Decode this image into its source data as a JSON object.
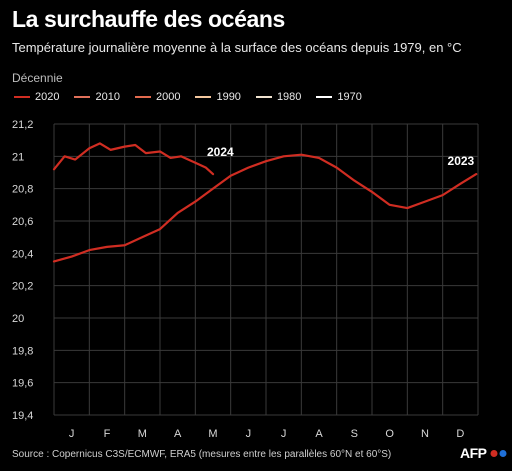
{
  "header": {
    "title": "La surchauffe des océans",
    "subtitle": "Température journalière moyenne à la surface des océans depuis 1979, en °C"
  },
  "legend": {
    "title": "Décennie",
    "items": [
      {
        "label": "2020",
        "color": "#d02d22"
      },
      {
        "label": "2010",
        "color": "#e0705a"
      },
      {
        "label": "2000",
        "color": "#e26a4e"
      },
      {
        "label": "1990",
        "color": "#f4c79e"
      },
      {
        "label": "1980",
        "color": "#f0e3d0"
      },
      {
        "label": "1970",
        "color": "#ffffff"
      }
    ]
  },
  "chart_data": {
    "type": "line",
    "x_labels": [
      "J",
      "F",
      "M",
      "A",
      "M",
      "J",
      "J",
      "A",
      "S",
      "O",
      "N",
      "D"
    ],
    "ylim": [
      19.4,
      21.2
    ],
    "yticks": [
      "19,4",
      "19,6",
      "19,8",
      "20",
      "20,2",
      "20,4",
      "20,6",
      "20,8",
      "21",
      "21,2"
    ],
    "grid": true,
    "annotations": [
      "2024",
      "2023"
    ],
    "series": [
      {
        "name": "2024",
        "color": "#d02d22",
        "x": [
          0,
          0.3,
          0.6,
          1,
          1.3,
          1.6,
          2,
          2.3,
          2.6,
          3,
          3.3,
          3.6,
          4,
          4.3,
          4.5
        ],
        "values": [
          20.92,
          21.0,
          20.98,
          21.05,
          21.08,
          21.04,
          21.06,
          21.07,
          21.02,
          21.03,
          20.99,
          21.0,
          20.96,
          20.93,
          20.89
        ]
      },
      {
        "name": "2023",
        "color": "#d02d22",
        "x": [
          0,
          0.5,
          1,
          1.5,
          2,
          2.5,
          3,
          3.5,
          4,
          4.5,
          5,
          5.5,
          6,
          6.5,
          7,
          7.5,
          8,
          8.5,
          9,
          9.5,
          10,
          10.5,
          11,
          11.5,
          11.95
        ],
        "values": [
          20.35,
          20.38,
          20.42,
          20.44,
          20.45,
          20.5,
          20.55,
          20.65,
          20.72,
          20.8,
          20.88,
          20.93,
          20.97,
          21.0,
          21.01,
          20.99,
          20.93,
          20.85,
          20.78,
          20.7,
          20.68,
          20.72,
          20.76,
          20.83,
          20.89
        ]
      }
    ]
  },
  "footer": {
    "source": "Source : Copernicus C3S/ECMWF, ERA5 (mesures entre les parallèles 60°N et 60°S)",
    "logo_text": "AFP"
  }
}
